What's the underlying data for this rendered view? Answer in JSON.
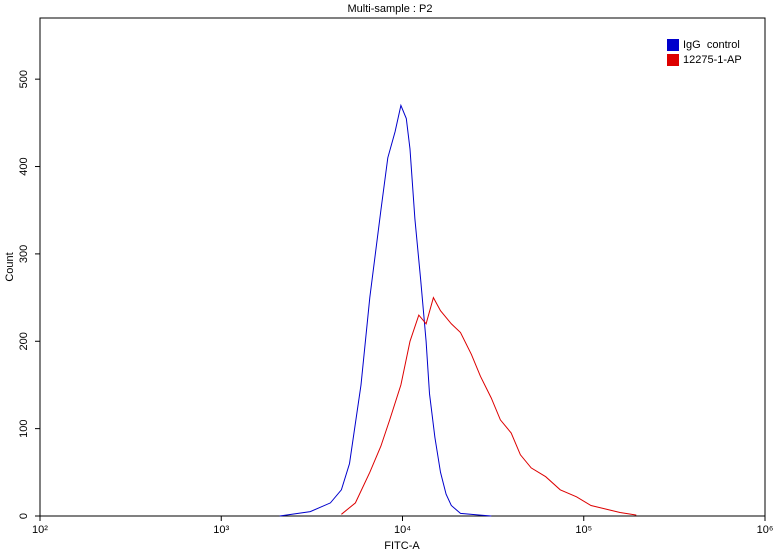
{
  "chart_data": {
    "type": "line",
    "title": "Multi-sample : P2",
    "x_label": "FITC-A",
    "y_label": "Count",
    "xscale": "log",
    "xlim": [
      100,
      1000000
    ],
    "xticks": [
      {
        "value": 100,
        "label": "10²"
      },
      {
        "value": 1000,
        "label": "10³"
      },
      {
        "value": 10000,
        "label": "10⁴"
      },
      {
        "value": 100000,
        "label": "10⁵"
      },
      {
        "value": 1000000,
        "label": "10⁶"
      }
    ],
    "ylim": [
      0,
      570
    ],
    "yticks": [
      0,
      100,
      200,
      300,
      400,
      500
    ],
    "legend": "upper right",
    "series": [
      {
        "name": "IgG  control",
        "color": "#0000cc",
        "x": [
          2100,
          3100,
          4000,
          4600,
          5100,
          5900,
          6600,
          7600,
          8300,
          9100,
          9800,
          10500,
          11000,
          11700,
          12600,
          13500,
          14100,
          15100,
          16200,
          17400,
          18600,
          20900,
          26900,
          30900
        ],
        "values": [
          0,
          5,
          15,
          30,
          60,
          150,
          250,
          350,
          410,
          440,
          470,
          455,
          420,
          340,
          270,
          200,
          140,
          90,
          50,
          25,
          12,
          3,
          1,
          0
        ]
      },
      {
        "name": "12275-1-AP",
        "color": "#dd0000",
        "x": [
          4600,
          5500,
          6600,
          7600,
          8500,
          9800,
          11000,
          12300,
          13500,
          14800,
          16200,
          18600,
          20900,
          24000,
          26900,
          30900,
          34700,
          39800,
          44700,
          51300,
          61700,
          74100,
          91200,
          109600,
          131800,
          158500,
          195000
        ],
        "values": [
          2,
          15,
          50,
          80,
          110,
          150,
          200,
          230,
          220,
          250,
          235,
          220,
          210,
          185,
          160,
          135,
          110,
          95,
          70,
          55,
          45,
          30,
          22,
          12,
          8,
          4,
          1
        ]
      }
    ]
  }
}
